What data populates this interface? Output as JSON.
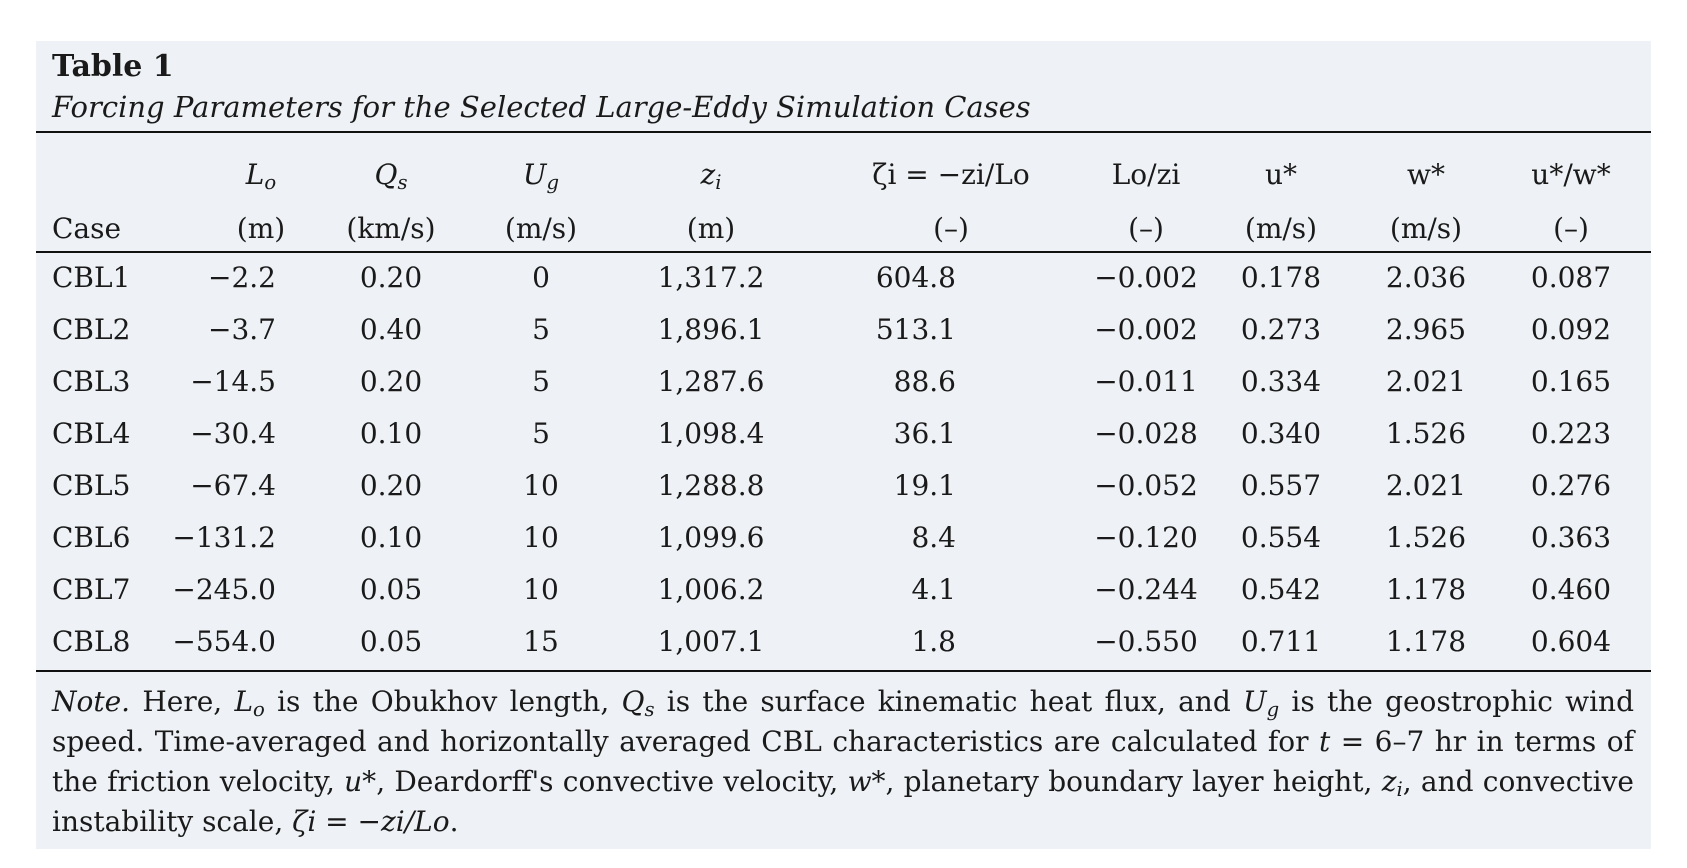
{
  "table": {
    "title": "Table 1",
    "subtitle": "Forcing Parameters for the Selected Large-Eddy Simulation Cases",
    "columns": [
      {
        "symbol": "L",
        "sub": "o",
        "unit": "(m)"
      },
      {
        "symbol": "Q",
        "sub": "s",
        "unit": "(km/s)"
      },
      {
        "symbol": "U",
        "sub": "g",
        "unit": "(m/s)"
      },
      {
        "symbol": "z",
        "sub": "i",
        "unit": "(m)"
      },
      {
        "symbol": "ζi = −zi/Lo",
        "unit": "(–)"
      },
      {
        "symbol": "Lo/zi",
        "unit": "(–)"
      },
      {
        "symbol": "u*",
        "unit": "(m/s)"
      },
      {
        "symbol": "w*",
        "unit": "(m/s)"
      },
      {
        "symbol": "u*/w*",
        "unit": "(–)"
      }
    ],
    "case_header": "Case",
    "rows": [
      {
        "case": "CBL1",
        "lo": "−2.2",
        "qs": "0.20",
        "ug": "0",
        "zi": "1,317.2",
        "zeta": "604.8",
        "lozi": "−0.002",
        "ustar": "0.178",
        "wstar": "2.036",
        "ratio": "0.087"
      },
      {
        "case": "CBL2",
        "lo": "−3.7",
        "qs": "0.40",
        "ug": "5",
        "zi": "1,896.1",
        "zeta": "513.1",
        "lozi": "−0.002",
        "ustar": "0.273",
        "wstar": "2.965",
        "ratio": "0.092"
      },
      {
        "case": "CBL3",
        "lo": "−14.5",
        "qs": "0.20",
        "ug": "5",
        "zi": "1,287.6",
        "zeta": "88.6",
        "lozi": "−0.011",
        "ustar": "0.334",
        "wstar": "2.021",
        "ratio": "0.165"
      },
      {
        "case": "CBL4",
        "lo": "−30.4",
        "qs": "0.10",
        "ug": "5",
        "zi": "1,098.4",
        "zeta": "36.1",
        "lozi": "−0.028",
        "ustar": "0.340",
        "wstar": "1.526",
        "ratio": "0.223"
      },
      {
        "case": "CBL5",
        "lo": "−67.4",
        "qs": "0.20",
        "ug": "10",
        "zi": "1,288.8",
        "zeta": "19.1",
        "lozi": "−0.052",
        "ustar": "0.557",
        "wstar": "2.021",
        "ratio": "0.276"
      },
      {
        "case": "CBL6",
        "lo": "−131.2",
        "qs": "0.10",
        "ug": "10",
        "zi": "1,099.6",
        "zeta": "8.4",
        "lozi": "−0.120",
        "ustar": "0.554",
        "wstar": "1.526",
        "ratio": "0.363"
      },
      {
        "case": "CBL7",
        "lo": "−245.0",
        "qs": "0.05",
        "ug": "10",
        "zi": "1,006.2",
        "zeta": "4.1",
        "lozi": "−0.244",
        "ustar": "0.542",
        "wstar": "1.178",
        "ratio": "0.460"
      },
      {
        "case": "CBL8",
        "lo": "−554.0",
        "qs": "0.05",
        "ug": "15",
        "zi": "1,007.1",
        "zeta": "1.8",
        "lozi": "−0.550",
        "ustar": "0.711",
        "wstar": "1.178",
        "ratio": "0.604"
      }
    ],
    "note": {
      "label": "Note.",
      "t1": " Here, ",
      "s1": "L",
      "s1sub": "o",
      "t2": " is the Obukhov length, ",
      "s2": "Q",
      "s2sub": "s",
      "t3": " is the surface kinematic heat flux, and ",
      "s3": "U",
      "s3sub": "g",
      "t4": " is the geostrophic wind speed. Time-averaged and horizontally averaged CBL characteristics are calculated for ",
      "s4": "t",
      "t5": " = 6–7 hr in terms of the friction velocity, ",
      "s5": "u*",
      "t6": ", Deardorff's convective velocity, ",
      "s6": "w*",
      "t7": ", planetary boundary layer height, ",
      "s7": "z",
      "s7sub": "i",
      "t8": ", and convective instability scale, ",
      "s8": "ζi = −zi/Lo",
      "t9": "."
    }
  }
}
